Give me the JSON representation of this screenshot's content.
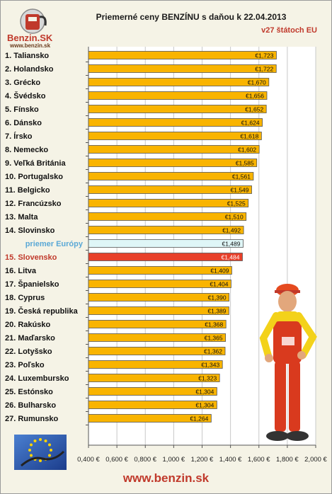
{
  "logo": {
    "name": "Benzin.SK",
    "url": "www.benzin.sk"
  },
  "footer": {
    "url": "www.benzin.sk"
  },
  "colors": {
    "bar": "#f9b400",
    "bar_border": "#555555",
    "average_bar": "#dff6f7",
    "highlight_bar": "#e8402a",
    "highlight_text": "#c0392b",
    "average_text": "#5aa8d6"
  },
  "chart_data": {
    "type": "bar",
    "orientation": "horizontal",
    "title": "Priemerné ceny BENZÍNU s daňou k 22.04.2013",
    "subtitle": "v27 štátoch EU",
    "xlim": [
      0.4,
      2.0
    ],
    "x_ticks": [
      "0,400 €",
      "0,600 €",
      "0,800 €",
      "1,000 €",
      "1,200 €",
      "1,400 €",
      "1,600 €",
      "1,800 €",
      "2,000 €"
    ],
    "grid": "vertical",
    "categories": [
      "1. Taliansko",
      "2. Holandsko",
      "3. Grécko",
      "4. Švédsko",
      "5. Fínsko",
      "6. Dánsko",
      "7. Írsko",
      "8. Nemecko",
      "9. Veľká Británia",
      "10. Portugalsko",
      "11. Belgicko",
      "12. Francúzsko",
      "13. Malta",
      "14. Slovinsko",
      "priemer Európy",
      "15. Slovensko",
      "16. Litva",
      "17. Španielsko",
      "18. Cyprus",
      "19. Česká republika",
      "20. Rakúsko",
      "21. Maďarsko",
      "22. Lotyšsko",
      "23. Poľsko",
      "24. Luxembursko",
      "25. Estónsko",
      "26. Bulharsko",
      "27. Rumunsko"
    ],
    "values": [
      1.723,
      1.722,
      1.67,
      1.656,
      1.652,
      1.624,
      1.618,
      1.602,
      1.585,
      1.561,
      1.549,
      1.525,
      1.51,
      1.492,
      1.489,
      1.484,
      1.409,
      1.404,
      1.39,
      1.389,
      1.368,
      1.365,
      1.362,
      1.343,
      1.323,
      1.304,
      1.304,
      1.264
    ],
    "value_labels": [
      "€1,723",
      "€1,722",
      "€1,670",
      "€1,656",
      "€1,652",
      "€1,624",
      "€1,618",
      "€1,602",
      "€1,585",
      "€1,561",
      "€1,549",
      "€1,525",
      "€1,510",
      "€1,492",
      "€1,489",
      "€1,484",
      "€1,409",
      "€1,404",
      "€1,390",
      "€1,389",
      "€1,368",
      "€1,365",
      "€1,362",
      "€1,343",
      "€1,323",
      "€1,304",
      "€1,304",
      "€1,264"
    ],
    "average_index": 14,
    "highlight_index": 15
  }
}
